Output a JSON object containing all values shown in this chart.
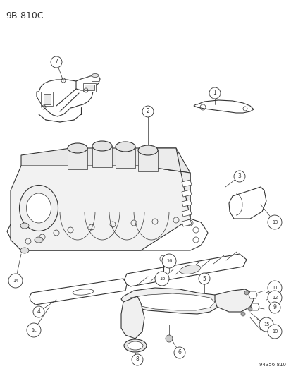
{
  "title": "9B-810C",
  "footer": "94356 810",
  "background_color": "#ffffff",
  "line_color": "#333333",
  "label_color": "#333333",
  "fig_width": 4.14,
  "fig_height": 5.33,
  "dpi": 100
}
